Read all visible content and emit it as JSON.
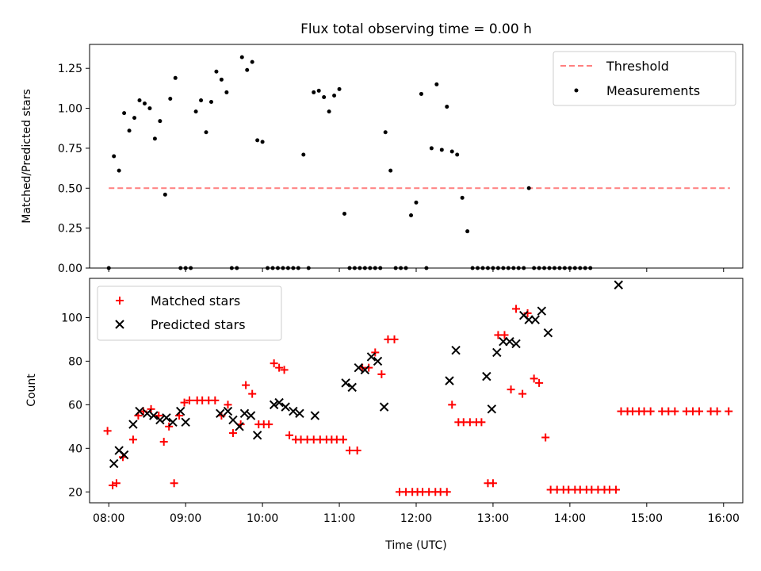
{
  "chart_data": [
    {
      "type": "scatter",
      "title": "Flux total observing time = 0.00 h",
      "xlabel": "",
      "ylabel": "Matched/Predicted stars",
      "xlim": [
        "07:45",
        "16:15"
      ],
      "ylim": [
        0,
        1.4
      ],
      "yticks": [
        0.0,
        0.25,
        0.5,
        0.75,
        1.0,
        1.25
      ],
      "ytick_labels": [
        "0.00",
        "0.25",
        "0.50",
        "0.75",
        "1.00",
        "1.25"
      ],
      "legend": {
        "position": "top-right",
        "entries": [
          "Threshold",
          "Measurements"
        ]
      },
      "threshold": {
        "name": "Threshold",
        "y": 0.5,
        "x_range": [
          "08:00",
          "16:05"
        ],
        "color": "#ff7f7f",
        "style": "dashed"
      },
      "series": [
        {
          "name": "Measurements",
          "color": "#000000",
          "marker": "dot",
          "points": [
            [
              "08:00",
              0.0
            ],
            [
              "08:04",
              0.7
            ],
            [
              "08:08",
              0.61
            ],
            [
              "08:12",
              0.97
            ],
            [
              "08:16",
              0.86
            ],
            [
              "08:20",
              0.94
            ],
            [
              "08:24",
              1.05
            ],
            [
              "08:28",
              1.03
            ],
            [
              "08:32",
              1.0
            ],
            [
              "08:36",
              0.81
            ],
            [
              "08:40",
              0.92
            ],
            [
              "08:44",
              0.46
            ],
            [
              "08:48",
              1.06
            ],
            [
              "08:52",
              1.19
            ],
            [
              "08:56",
              0.0
            ],
            [
              "09:00",
              0.0
            ],
            [
              "09:04",
              0.0
            ],
            [
              "09:08",
              0.98
            ],
            [
              "09:12",
              1.05
            ],
            [
              "09:16",
              0.85
            ],
            [
              "09:20",
              1.04
            ],
            [
              "09:24",
              1.23
            ],
            [
              "09:28",
              1.18
            ],
            [
              "09:32",
              1.1
            ],
            [
              "09:36",
              0.0
            ],
            [
              "09:40",
              0.0
            ],
            [
              "09:44",
              1.32
            ],
            [
              "09:48",
              1.24
            ],
            [
              "09:52",
              1.29
            ],
            [
              "09:56",
              0.8
            ],
            [
              "10:00",
              0.79
            ],
            [
              "10:04",
              0.0
            ],
            [
              "10:08",
              0.0
            ],
            [
              "10:12",
              0.0
            ],
            [
              "10:16",
              0.0
            ],
            [
              "10:20",
              0.0
            ],
            [
              "10:24",
              0.0
            ],
            [
              "10:28",
              0.0
            ],
            [
              "10:32",
              0.71
            ],
            [
              "10:36",
              0.0
            ],
            [
              "10:40",
              1.1
            ],
            [
              "10:44",
              1.11
            ],
            [
              "10:48",
              1.07
            ],
            [
              "10:52",
              0.98
            ],
            [
              "10:56",
              1.08
            ],
            [
              "11:00",
              1.12
            ],
            [
              "11:04",
              0.34
            ],
            [
              "11:08",
              0.0
            ],
            [
              "11:12",
              0.0
            ],
            [
              "11:16",
              0.0
            ],
            [
              "11:20",
              0.0
            ],
            [
              "11:24",
              0.0
            ],
            [
              "11:28",
              0.0
            ],
            [
              "11:32",
              0.0
            ],
            [
              "11:36",
              0.85
            ],
            [
              "11:40",
              0.61
            ],
            [
              "11:44",
              0.0
            ],
            [
              "11:48",
              0.0
            ],
            [
              "11:52",
              0.0
            ],
            [
              "11:56",
              0.33
            ],
            [
              "12:00",
              0.41
            ],
            [
              "12:04",
              1.09
            ],
            [
              "12:08",
              0.0
            ],
            [
              "12:12",
              0.75
            ],
            [
              "12:16",
              1.15
            ],
            [
              "12:20",
              0.74
            ],
            [
              "12:24",
              1.01
            ],
            [
              "12:28",
              0.73
            ],
            [
              "12:32",
              0.71
            ],
            [
              "12:36",
              0.44
            ],
            [
              "12:40",
              0.23
            ],
            [
              "12:44",
              0.0
            ],
            [
              "12:48",
              0.0
            ],
            [
              "12:52",
              0.0
            ],
            [
              "12:56",
              0.0
            ],
            [
              "13:00",
              0.0
            ],
            [
              "13:04",
              0.0
            ],
            [
              "13:08",
              0.0
            ],
            [
              "13:12",
              0.0
            ],
            [
              "13:16",
              0.0
            ],
            [
              "13:20",
              0.0
            ],
            [
              "13:24",
              0.0
            ],
            [
              "13:28",
              0.5
            ],
            [
              "13:32",
              0.0
            ],
            [
              "13:36",
              0.0
            ],
            [
              "13:40",
              0.0
            ],
            [
              "13:44",
              0.0
            ],
            [
              "13:48",
              0.0
            ],
            [
              "13:52",
              0.0
            ],
            [
              "13:56",
              0.0
            ],
            [
              "14:00",
              0.0
            ],
            [
              "14:04",
              0.0
            ],
            [
              "14:08",
              0.0
            ],
            [
              "14:12",
              0.0
            ],
            [
              "14:16",
              0.0
            ]
          ]
        }
      ]
    },
    {
      "type": "scatter",
      "title": "",
      "xlabel": "Time (UTC)",
      "ylabel": "Count",
      "xlim": [
        "07:45",
        "16:15"
      ],
      "ylim": [
        15,
        118
      ],
      "xticks": [
        "08:00",
        "09:00",
        "10:00",
        "11:00",
        "12:00",
        "13:00",
        "14:00",
        "15:00",
        "16:00"
      ],
      "yticks": [
        20,
        40,
        60,
        80,
        100
      ],
      "ytick_labels": [
        "20",
        "40",
        "60",
        "80",
        "100"
      ],
      "legend": {
        "position": "top-left",
        "entries": [
          "Matched stars",
          "Predicted stars"
        ]
      },
      "series": [
        {
          "name": "Matched stars",
          "color": "#ff0000",
          "marker": "plus",
          "points": [
            [
              "07:59",
              48
            ],
            [
              "08:03",
              23
            ],
            [
              "08:06",
              24
            ],
            [
              "08:11",
              36
            ],
            [
              "08:19",
              44
            ],
            [
              "08:23",
              55
            ],
            [
              "08:27",
              57
            ],
            [
              "08:33",
              58
            ],
            [
              "08:39",
              55
            ],
            [
              "08:43",
              43
            ],
            [
              "08:47",
              50
            ],
            [
              "08:51",
              24
            ],
            [
              "08:55",
              55
            ],
            [
              "08:59",
              61
            ],
            [
              "09:03",
              62
            ],
            [
              "09:09",
              62
            ],
            [
              "09:13",
              62
            ],
            [
              "09:18",
              62
            ],
            [
              "09:23",
              62
            ],
            [
              "09:28",
              55
            ],
            [
              "09:33",
              60
            ],
            [
              "09:37",
              47
            ],
            [
              "09:43",
              51
            ],
            [
              "09:47",
              69
            ],
            [
              "09:52",
              65
            ],
            [
              "09:57",
              51
            ],
            [
              "10:01",
              51
            ],
            [
              "10:05",
              51
            ],
            [
              "10:09",
              79
            ],
            [
              "10:13",
              77
            ],
            [
              "10:17",
              76
            ],
            [
              "10:21",
              46
            ],
            [
              "10:26",
              44
            ],
            [
              "10:30",
              44
            ],
            [
              "10:35",
              44
            ],
            [
              "10:40",
              44
            ],
            [
              "10:45",
              44
            ],
            [
              "10:50",
              44
            ],
            [
              "10:54",
              44
            ],
            [
              "10:58",
              44
            ],
            [
              "11:03",
              44
            ],
            [
              "11:08",
              39
            ],
            [
              "11:14",
              39
            ],
            [
              "11:18",
              77
            ],
            [
              "11:23",
              77
            ],
            [
              "11:28",
              84
            ],
            [
              "11:33",
              74
            ],
            [
              "11:38",
              90
            ],
            [
              "11:43",
              90
            ],
            [
              "11:47",
              20
            ],
            [
              "11:52",
              20
            ],
            [
              "11:57",
              20
            ],
            [
              "12:01",
              20
            ],
            [
              "12:05",
              20
            ],
            [
              "12:10",
              20
            ],
            [
              "12:15",
              20
            ],
            [
              "12:19",
              20
            ],
            [
              "12:24",
              20
            ],
            [
              "12:28",
              60
            ],
            [
              "12:33",
              52
            ],
            [
              "12:37",
              52
            ],
            [
              "12:42",
              52
            ],
            [
              "12:47",
              52
            ],
            [
              "12:51",
              52
            ],
            [
              "12:56",
              24
            ],
            [
              "13:00",
              24
            ],
            [
              "13:04",
              92
            ],
            [
              "13:09",
              92
            ],
            [
              "13:14",
              67
            ],
            [
              "13:18",
              104
            ],
            [
              "13:23",
              65
            ],
            [
              "13:27",
              102
            ],
            [
              "13:32",
              72
            ],
            [
              "13:36",
              70
            ],
            [
              "13:41",
              45
            ],
            [
              "13:45",
              21
            ],
            [
              "13:50",
              21
            ],
            [
              "13:55",
              21
            ],
            [
              "13:59",
              21
            ],
            [
              "14:04",
              21
            ],
            [
              "14:08",
              21
            ],
            [
              "14:13",
              21
            ],
            [
              "14:17",
              21
            ],
            [
              "14:22",
              21
            ],
            [
              "14:27",
              21
            ],
            [
              "14:31",
              21
            ],
            [
              "14:36",
              21
            ],
            [
              "14:40",
              57
            ],
            [
              "14:45",
              57
            ],
            [
              "14:49",
              57
            ],
            [
              "14:54",
              57
            ],
            [
              "14:58",
              57
            ],
            [
              "15:03",
              57
            ],
            [
              "15:12",
              57
            ],
            [
              "15:17",
              57
            ],
            [
              "15:22",
              57
            ],
            [
              "15:31",
              57
            ],
            [
              "15:36",
              57
            ],
            [
              "15:41",
              57
            ],
            [
              "15:50",
              57
            ],
            [
              "15:55",
              57
            ],
            [
              "16:04",
              57
            ]
          ]
        },
        {
          "name": "Predicted stars",
          "color": "#000000",
          "marker": "x",
          "points": [
            [
              "08:04",
              33
            ],
            [
              "08:08",
              39
            ],
            [
              "08:12",
              37
            ],
            [
              "08:19",
              51
            ],
            [
              "08:24",
              57
            ],
            [
              "08:30",
              56
            ],
            [
              "08:35",
              55
            ],
            [
              "08:40",
              53
            ],
            [
              "08:45",
              54
            ],
            [
              "08:50",
              52
            ],
            [
              "08:56",
              57
            ],
            [
              "09:00",
              52
            ],
            [
              "09:27",
              56
            ],
            [
              "09:33",
              57
            ],
            [
              "09:37",
              53
            ],
            [
              "09:42",
              50
            ],
            [
              "09:46",
              56
            ],
            [
              "09:51",
              55
            ],
            [
              "09:56",
              46
            ],
            [
              "10:09",
              60
            ],
            [
              "10:13",
              61
            ],
            [
              "10:18",
              59
            ],
            [
              "10:24",
              57
            ],
            [
              "10:29",
              56
            ],
            [
              "10:41",
              55
            ],
            [
              "11:05",
              70
            ],
            [
              "11:10",
              68
            ],
            [
              "11:15",
              77
            ],
            [
              "11:20",
              76
            ],
            [
              "11:25",
              82
            ],
            [
              "11:30",
              80
            ],
            [
              "11:35",
              59
            ],
            [
              "12:26",
              71
            ],
            [
              "12:31",
              85
            ],
            [
              "12:55",
              73
            ],
            [
              "12:59",
              58
            ],
            [
              "13:03",
              84
            ],
            [
              "13:08",
              89
            ],
            [
              "13:13",
              89
            ],
            [
              "13:18",
              88
            ],
            [
              "13:24",
              101
            ],
            [
              "13:28",
              99
            ],
            [
              "13:33",
              99
            ],
            [
              "13:38",
              103
            ],
            [
              "13:43",
              93
            ],
            [
              "14:38",
              115
            ]
          ]
        }
      ]
    }
  ]
}
